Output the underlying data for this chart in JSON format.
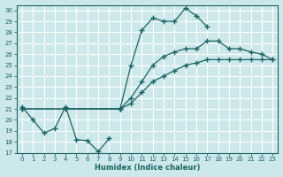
{
  "xlabel": "Humidex (Indice chaleur)",
  "bg_color": "#cde8eb",
  "grid_color": "#ffffff",
  "line_color": "#1a6464",
  "xlim": [
    -0.5,
    23.5
  ],
  "ylim": [
    17,
    30.5
  ],
  "xticks": [
    0,
    1,
    2,
    3,
    4,
    5,
    6,
    7,
    8,
    9,
    10,
    11,
    12,
    13,
    14,
    15,
    16,
    17,
    18,
    19,
    20,
    21,
    22,
    23
  ],
  "yticks": [
    17,
    18,
    19,
    20,
    21,
    22,
    23,
    24,
    25,
    26,
    27,
    28,
    29,
    30
  ],
  "series": [
    {
      "x": [
        0,
        1,
        2,
        3,
        4,
        5,
        6,
        7,
        8
      ],
      "y": [
        21.2,
        20.0,
        18.8,
        19.2,
        21.2,
        18.2,
        18.1,
        17.1,
        18.3
      ]
    },
    {
      "x": [
        4,
        9,
        10,
        11,
        12,
        13,
        14,
        15,
        16,
        17
      ],
      "y": [
        21.0,
        21.0,
        25.0,
        28.2,
        29.3,
        29.0,
        29.0,
        30.2,
        29.5,
        28.5
      ]
    },
    {
      "x": [
        0,
        9,
        10,
        11,
        12,
        13,
        14,
        15,
        16,
        17,
        18,
        19,
        20,
        21,
        22,
        23
      ],
      "y": [
        21.0,
        21.0,
        22.0,
        23.5,
        25.0,
        25.8,
        26.2,
        26.5,
        26.5,
        27.2,
        27.2,
        26.5,
        26.5,
        26.2,
        26.0,
        25.5
      ]
    },
    {
      "x": [
        0,
        9,
        10,
        11,
        12,
        13,
        14,
        15,
        16,
        17,
        18,
        19,
        20,
        21,
        22,
        23
      ],
      "y": [
        21.0,
        21.0,
        21.5,
        22.5,
        23.5,
        24.0,
        24.5,
        25.0,
        25.2,
        25.5,
        25.5,
        25.5,
        25.5,
        25.5,
        25.5,
        25.5
      ]
    }
  ]
}
